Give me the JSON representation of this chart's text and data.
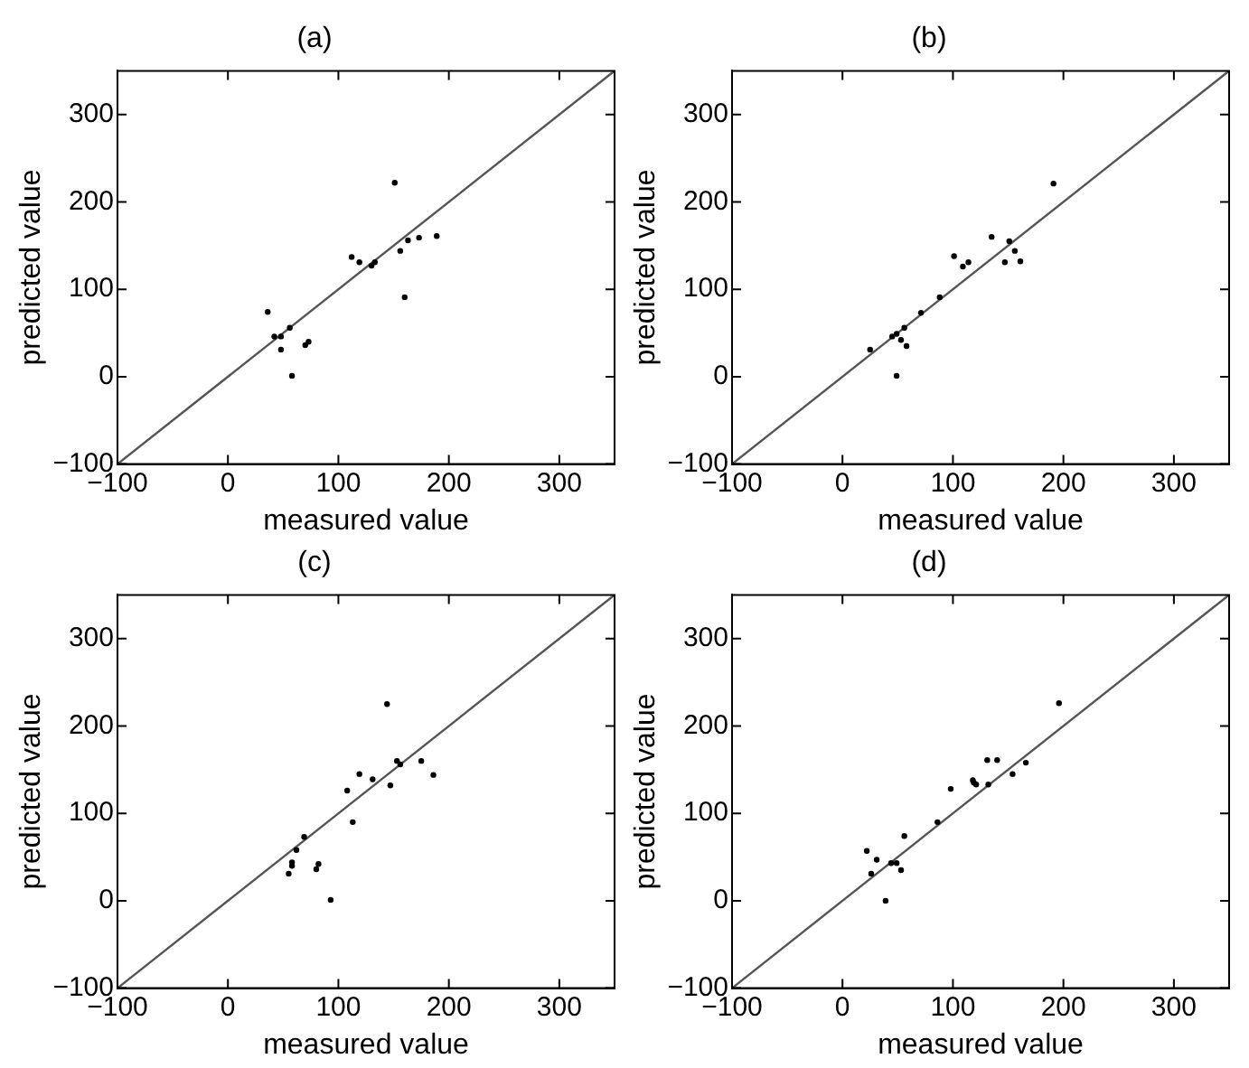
{
  "chart_data": [
    {
      "type": "scatter",
      "title": "(a)",
      "xlabel": "measured value",
      "ylabel": "predicted value",
      "xlim": [
        -100,
        350
      ],
      "ylim": [
        -100,
        350
      ],
      "xticks": [
        -100,
        0,
        100,
        200,
        300
      ],
      "yticks": [
        -100,
        0,
        100,
        200,
        300
      ],
      "grid": false,
      "legend": false,
      "series": [
        {
          "type": "line",
          "color": "#555555",
          "marker": "none",
          "line_style": "solid",
          "x": [
            -100,
            350
          ],
          "values": [
            -100,
            350
          ]
        },
        {
          "type": "scatter",
          "color": "#000000",
          "marker": "circle",
          "x": [
            36,
            42,
            48,
            48,
            56,
            58,
            70,
            73,
            112,
            119,
            130,
            133,
            151,
            156,
            160,
            163,
            173,
            189
          ],
          "values": [
            74,
            46,
            46,
            31,
            56,
            1,
            36,
            40,
            137,
            131,
            127,
            131,
            222,
            144,
            91,
            156,
            159,
            161
          ]
        }
      ]
    },
    {
      "type": "scatter",
      "title": "(b)",
      "xlabel": "measured value",
      "ylabel": "predicted value",
      "xlim": [
        -100,
        350
      ],
      "ylim": [
        -100,
        350
      ],
      "xticks": [
        -100,
        0,
        100,
        200,
        300
      ],
      "yticks": [
        -100,
        0,
        100,
        200,
        300
      ],
      "grid": false,
      "legend": false,
      "series": [
        {
          "type": "line",
          "color": "#555555",
          "marker": "none",
          "line_style": "solid",
          "x": [
            -100,
            350
          ],
          "values": [
            -100,
            350
          ]
        },
        {
          "type": "scatter",
          "color": "#000000",
          "marker": "circle",
          "x": [
            25,
            45,
            49,
            49,
            53,
            56,
            58,
            71,
            88,
            101,
            109,
            114,
            135,
            147,
            151,
            156,
            161,
            191
          ],
          "values": [
            31,
            46,
            49,
            1,
            42,
            56,
            35,
            73,
            91,
            138,
            126,
            131,
            160,
            131,
            155,
            144,
            132,
            221
          ]
        }
      ]
    },
    {
      "type": "scatter",
      "title": "(c)",
      "xlabel": "measured value",
      "ylabel": "predicted value",
      "xlim": [
        -100,
        350
      ],
      "ylim": [
        -100,
        350
      ],
      "xticks": [
        -100,
        0,
        100,
        200,
        300
      ],
      "yticks": [
        -100,
        0,
        100,
        200,
        300
      ],
      "grid": false,
      "legend": false,
      "series": [
        {
          "type": "line",
          "color": "#555555",
          "marker": "none",
          "line_style": "solid",
          "x": [
            -100,
            350
          ],
          "values": [
            -100,
            350
          ]
        },
        {
          "type": "scatter",
          "color": "#000000",
          "marker": "circle",
          "x": [
            55,
            58,
            58,
            62,
            69,
            80,
            82,
            93,
            108,
            113,
            119,
            131,
            144,
            147,
            153,
            156,
            175,
            186
          ],
          "values": [
            31,
            44,
            40,
            58,
            73,
            36,
            42,
            1,
            126,
            90,
            145,
            139,
            225,
            132,
            160,
            156,
            160,
            144
          ]
        }
      ]
    },
    {
      "type": "scatter",
      "title": "(d)",
      "xlabel": "measured value",
      "ylabel": "predicted value",
      "xlim": [
        -100,
        350
      ],
      "ylim": [
        -100,
        350
      ],
      "xticks": [
        -100,
        0,
        100,
        200,
        300
      ],
      "yticks": [
        -100,
        0,
        100,
        200,
        300
      ],
      "grid": false,
      "legend": false,
      "series": [
        {
          "type": "line",
          "color": "#555555",
          "marker": "none",
          "line_style": "solid",
          "x": [
            -100,
            350
          ],
          "values": [
            -100,
            350
          ]
        },
        {
          "type": "scatter",
          "color": "#000000",
          "marker": "circle",
          "x": [
            22,
            26,
            31,
            39,
            44,
            49,
            53,
            56,
            86,
            98,
            118,
            119,
            121,
            131,
            132,
            140,
            154,
            166,
            196
          ],
          "values": [
            57,
            31,
            47,
            0,
            43,
            43,
            35,
            74,
            90,
            128,
            138,
            135,
            133,
            161,
            133,
            161,
            145,
            158,
            226
          ]
        }
      ]
    }
  ]
}
